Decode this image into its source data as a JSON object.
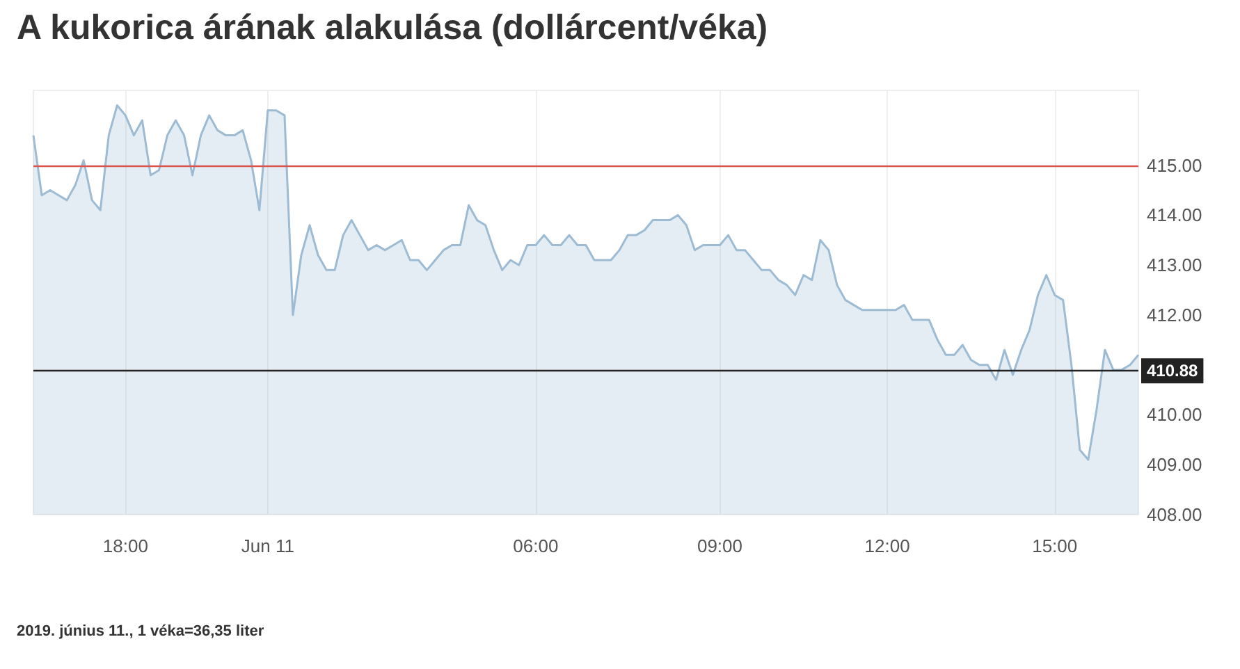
{
  "chart_data": {
    "type": "area",
    "title": "A kukorica árának alakulása (dollárcent/véka)",
    "annotations": [
      "2019. június 11., 1 véka=36,35 liter"
    ],
    "categories": [
      null,
      null,
      null,
      null,
      null,
      null,
      null,
      null,
      null,
      null,
      null,
      "18:00",
      null,
      null,
      null,
      null,
      null,
      null,
      null,
      null,
      null,
      null,
      null,
      null,
      null,
      null,
      null,
      null,
      "Jun 11",
      null,
      null,
      null,
      null,
      null,
      null,
      null,
      null,
      null,
      null,
      null,
      null,
      null,
      null,
      null,
      null,
      null,
      null,
      null,
      null,
      null,
      null,
      null,
      null,
      null,
      null,
      null,
      null,
      null,
      null,
      null,
      "06:00",
      null,
      null,
      null,
      null,
      null,
      null,
      null,
      null,
      null,
      null,
      null,
      null,
      null,
      null,
      null,
      null,
      null,
      null,
      null,
      null,
      null,
      "09:00",
      null,
      null,
      null,
      null,
      null,
      null,
      null,
      null,
      null,
      null,
      null,
      null,
      null,
      null,
      null,
      null,
      null,
      null,
      null,
      "12:00",
      null,
      null,
      null,
      null,
      null,
      null,
      null,
      null,
      null,
      null,
      null,
      null,
      null,
      null,
      null,
      null,
      null,
      null,
      null,
      "15:00",
      null,
      null,
      null,
      null,
      null,
      null,
      null,
      null,
      null,
      null
    ],
    "series": [
      {
        "color": "#9dbbd3",
        "values": [
          415.6,
          414.4,
          414.5,
          414.4,
          414.3,
          414.6,
          415.1,
          414.3,
          414.1,
          415.6,
          416.2,
          416.0,
          415.6,
          415.9,
          414.8,
          414.9,
          415.6,
          415.9,
          415.6,
          414.8,
          415.6,
          416.0,
          415.7,
          415.6,
          415.6,
          415.7,
          415.1,
          414.1,
          416.1,
          416.1,
          416.0,
          412.0,
          413.2,
          413.8,
          413.2,
          412.9,
          412.9,
          413.6,
          413.9,
          413.6,
          413.3,
          413.4,
          413.3,
          413.4,
          413.5,
          413.1,
          413.1,
          412.9,
          413.1,
          413.3,
          413.4,
          413.4,
          414.2,
          413.9,
          413.8,
          413.3,
          412.9,
          413.1,
          413.0,
          413.4,
          413.4,
          413.6,
          413.4,
          413.4,
          413.6,
          413.4,
          413.4,
          413.1,
          413.1,
          413.1,
          413.3,
          413.6,
          413.6,
          413.7,
          413.9,
          413.9,
          413.9,
          414.0,
          413.8,
          413.3,
          413.4,
          413.4,
          413.4,
          413.6,
          413.3,
          413.3,
          413.1,
          412.9,
          412.9,
          412.7,
          412.6,
          412.4,
          412.8,
          412.7,
          413.5,
          413.3,
          412.6,
          412.3,
          412.2,
          412.1,
          412.1,
          412.1,
          412.1,
          412.1,
          412.2,
          411.9,
          411.9,
          411.9,
          411.5,
          411.2,
          411.2,
          411.4,
          411.1,
          411.0,
          411.0,
          410.7,
          411.3,
          410.8,
          411.3,
          411.7,
          412.4,
          412.8,
          412.4,
          412.3,
          411.0,
          409.3,
          409.1,
          410.1,
          411.3,
          410.9,
          410.9,
          411.0,
          411.2
        ]
      }
    ],
    "ylim": [
      408,
      416.5
    ],
    "yticks": [
      {
        "value": 408,
        "label": "408.00"
      },
      {
        "value": 409,
        "label": "409.00"
      },
      {
        "value": 410,
        "label": "410.00"
      },
      {
        "value": 412,
        "label": "412.00"
      },
      {
        "value": 413,
        "label": "413.00"
      },
      {
        "value": 414,
        "label": "414.00"
      },
      {
        "value": 415,
        "label": "415.00"
      }
    ],
    "ref_lines": [
      {
        "axis": "y",
        "value": 415,
        "color": "#d9534f"
      },
      {
        "axis": "y",
        "value": 410.88,
        "label": "410.88",
        "color": "#222222"
      }
    ],
    "grid": "x",
    "marker": "none"
  }
}
